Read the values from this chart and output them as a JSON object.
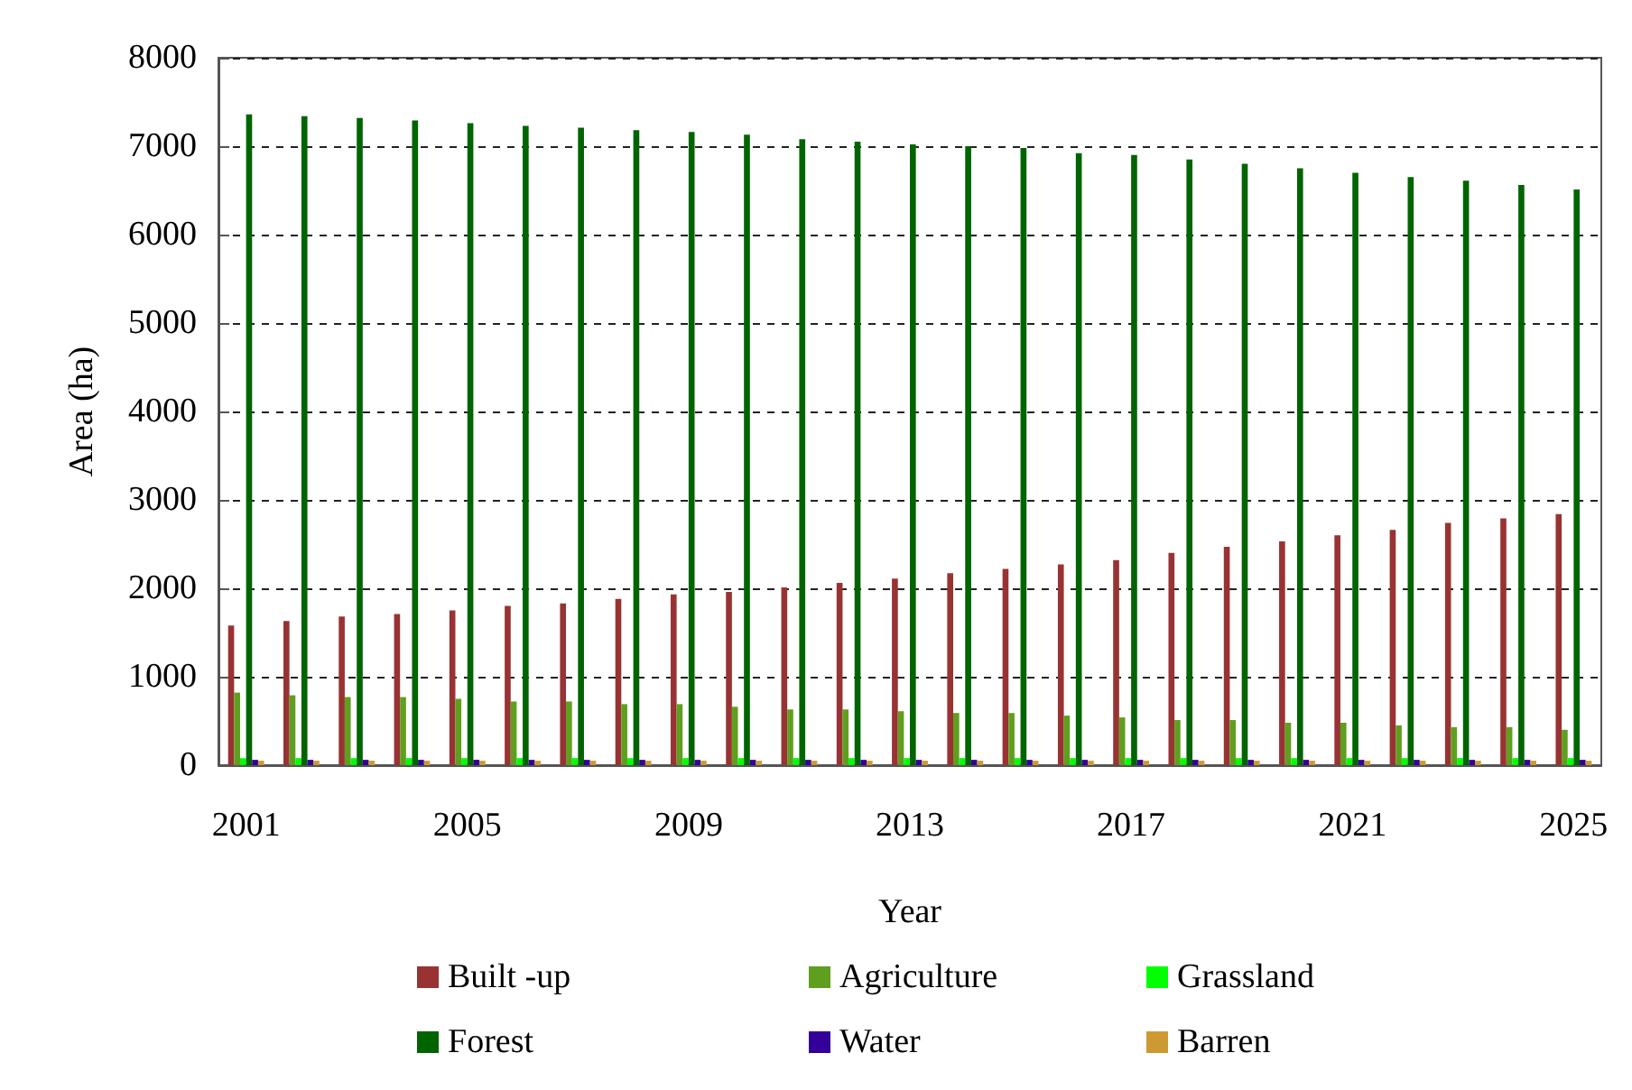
{
  "chart_data": {
    "type": "bar",
    "xlabel": "Year",
    "ylabel": "Area (ha)",
    "categories": [
      "2001",
      null,
      null,
      null,
      "2005",
      null,
      null,
      null,
      "2009",
      null,
      null,
      null,
      "2013",
      null,
      null,
      null,
      "2017",
      null,
      null,
      null,
      "2021",
      null,
      null,
      null,
      "2025"
    ],
    "series": [
      {
        "name": "Built -up",
        "color": "#993333",
        "values": [
          1580,
          1630,
          1680,
          1710,
          1750,
          1800,
          1830,
          1880,
          1930,
          1960,
          2010,
          2060,
          2110,
          2170,
          2220,
          2270,
          2320,
          2400,
          2470,
          2530,
          2600,
          2660,
          2740,
          2790,
          2840
        ]
      },
      {
        "name": "Agriculture",
        "color": "#5f9f1f",
        "values": [
          820,
          790,
          770,
          770,
          750,
          720,
          720,
          690,
          690,
          660,
          630,
          630,
          610,
          590,
          590,
          560,
          540,
          510,
          510,
          480,
          480,
          450,
          430,
          430,
          400
        ]
      },
      {
        "name": "Grassland",
        "color": "#00ff00",
        "values": [
          80,
          80,
          80,
          80,
          80,
          80,
          80,
          80,
          80,
          80,
          80,
          80,
          80,
          80,
          80,
          80,
          80,
          80,
          80,
          80,
          80,
          80,
          80,
          80,
          80
        ]
      },
      {
        "name": "Forest",
        "color": "#006400",
        "values": [
          7360,
          7340,
          7320,
          7290,
          7260,
          7230,
          7210,
          7180,
          7160,
          7130,
          7080,
          7050,
          7020,
          7000,
          6980,
          6920,
          6900,
          6850,
          6800,
          6750,
          6700,
          6650,
          6610,
          6560,
          6510
        ]
      },
      {
        "name": "Water",
        "color": "#330099",
        "values": [
          60,
          60,
          60,
          60,
          60,
          60,
          60,
          60,
          60,
          60,
          60,
          60,
          60,
          60,
          60,
          60,
          60,
          60,
          60,
          60,
          60,
          60,
          60,
          60,
          60
        ]
      },
      {
        "name": "Barren",
        "color": "#cc9933",
        "values": [
          50,
          50,
          50,
          50,
          50,
          50,
          50,
          50,
          50,
          50,
          50,
          50,
          50,
          50,
          50,
          50,
          50,
          50,
          50,
          50,
          50,
          50,
          50,
          50,
          50
        ]
      }
    ],
    "ylim": [
      0,
      8000
    ],
    "yticks": [
      0,
      1000,
      2000,
      3000,
      4000,
      5000,
      6000,
      7000,
      8000
    ],
    "grid": "y",
    "legend": "bottom"
  }
}
